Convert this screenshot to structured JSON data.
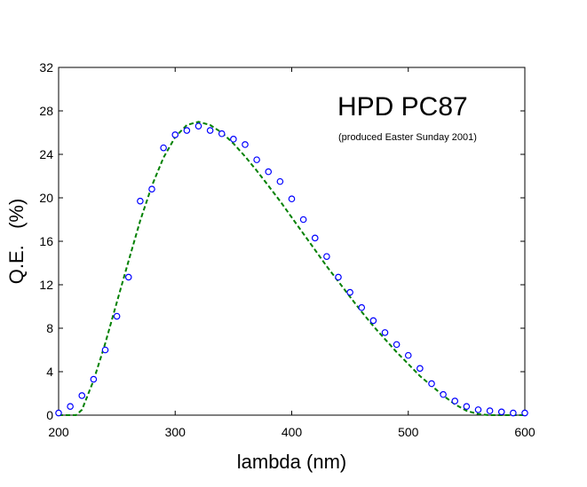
{
  "chart_data": {
    "type": "scatter",
    "title": "",
    "xlabel": "lambda  (nm)",
    "ylabel": "Q.E.   (%)",
    "xlim": [
      200,
      600
    ],
    "ylim": [
      0,
      32
    ],
    "xticks": [
      200,
      300,
      400,
      500,
      600
    ],
    "yticks": [
      0,
      4,
      8,
      12,
      16,
      20,
      24,
      28,
      32
    ],
    "grid": false,
    "annotations": [
      {
        "text": "HPD PC87",
        "role": "title"
      },
      {
        "text": "(produced Easter Sunday 2001)",
        "role": "subtitle"
      }
    ],
    "series": [
      {
        "kind": "scatter",
        "marker": "circle",
        "color": "#0000ff",
        "x": [
          200,
          210,
          220,
          230,
          240,
          250,
          260,
          270,
          280,
          290,
          300,
          310,
          320,
          330,
          340,
          350,
          360,
          370,
          380,
          390,
          400,
          410,
          420,
          430,
          440,
          450,
          460,
          470,
          480,
          490,
          500,
          510,
          520,
          530,
          540,
          550,
          560,
          570,
          580,
          590,
          600
        ],
        "y": [
          0.2,
          0.8,
          1.8,
          3.3,
          6.0,
          9.1,
          12.7,
          19.7,
          20.8,
          24.6,
          25.8,
          26.2,
          26.6,
          26.2,
          25.9,
          25.4,
          24.9,
          23.5,
          22.4,
          21.5,
          19.9,
          18.0,
          16.3,
          14.6,
          12.7,
          11.3,
          9.9,
          8.7,
          7.6,
          6.5,
          5.5,
          4.3,
          2.9,
          1.9,
          1.3,
          0.8,
          0.5,
          0.4,
          0.3,
          0.2,
          0.2
        ]
      },
      {
        "kind": "line",
        "style": "dashed",
        "color": "#008000",
        "x": [
          200,
          210,
          215,
          220,
          230,
          240,
          250,
          260,
          270,
          280,
          290,
          300,
          310,
          320,
          330,
          340,
          350,
          360,
          370,
          380,
          390,
          400,
          410,
          420,
          430,
          440,
          450,
          460,
          470,
          480,
          490,
          500,
          510,
          520,
          530,
          540,
          550,
          560,
          570,
          580,
          590,
          600
        ],
        "y": [
          0,
          0,
          0,
          0.5,
          3.2,
          6.6,
          10.4,
          14.2,
          17.9,
          21.1,
          23.7,
          25.6,
          26.7,
          27.0,
          26.7,
          26.0,
          25.0,
          23.8,
          22.5,
          21.1,
          19.7,
          18.2,
          16.7,
          15.2,
          13.7,
          12.3,
          10.9,
          9.5,
          8.2,
          7.0,
          5.8,
          4.7,
          3.6,
          2.7,
          1.8,
          1.0,
          0.4,
          0.1,
          0,
          0,
          0,
          0
        ]
      }
    ]
  }
}
